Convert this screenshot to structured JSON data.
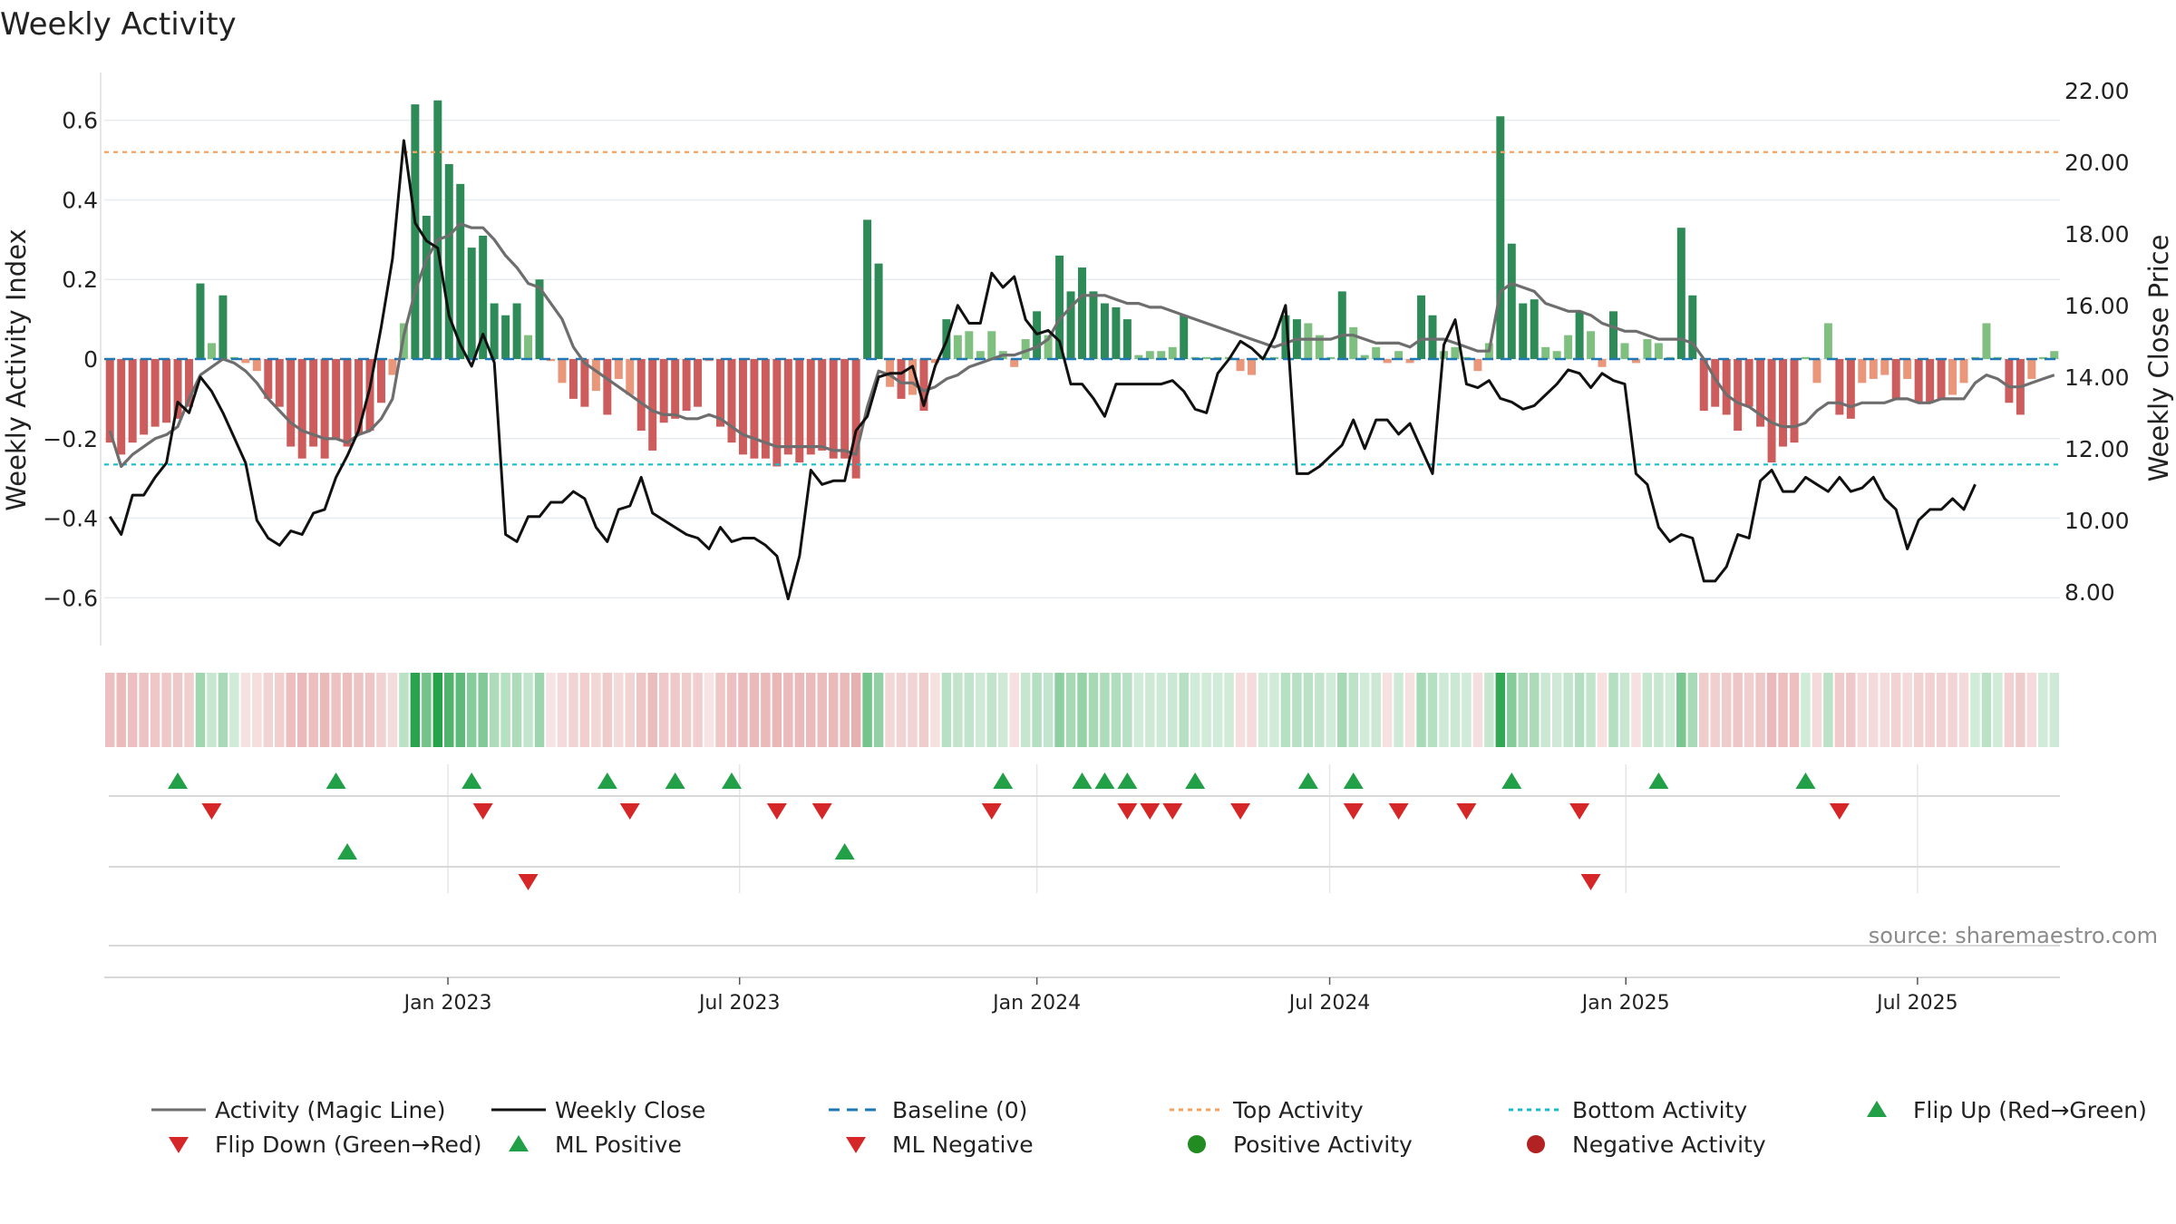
{
  "chart_data": {
    "type": "bar+line",
    "title": "Weekly Activity",
    "ylabel": "Weekly Activity Index",
    "y2label": "Weekly Close Price",
    "source": "source: sharemaestro.com",
    "ylim": [
      -0.72,
      0.72
    ],
    "y2lim": [
      6.5,
      22.5
    ],
    "yticks": [
      0.6,
      0.4,
      0.2,
      0,
      -0.2,
      -0.4,
      -0.6
    ],
    "ytick_labels": [
      "0.6",
      "0.4",
      "0.2",
      "0",
      "−0.2",
      "−0.4",
      "−0.6"
    ],
    "y2ticks": [
      22,
      20,
      18,
      16,
      14,
      12,
      10,
      8
    ],
    "y2tick_labels": [
      "22.00",
      "20.00",
      "18.00",
      "16.00",
      "14.00",
      "12.00",
      "10.00",
      "8.00"
    ],
    "xticks": [
      {
        "label": "Jan 2023",
        "week": 29.9
      },
      {
        "label": "Jul 2023",
        "week": 55.7
      },
      {
        "label": "Jan 2024",
        "week": 82.0
      },
      {
        "label": "Jul 2024",
        "week": 107.9
      },
      {
        "label": "Jan 2025",
        "week": 134.1
      },
      {
        "label": "Jul 2025",
        "week": 159.9
      }
    ],
    "top_activity": 0.52,
    "bottom_activity": -0.265,
    "colors": {
      "pos_strong": "#2e8b57",
      "pos_light": "#7fbf7f",
      "neg_strong": "#cd5c5c",
      "neg_light": "#e9967a",
      "magic_line": "#6e6e6e",
      "close_line": "#111111",
      "baseline": "#1f77b4",
      "top_line": "#f4a261",
      "bottom_line": "#17becf",
      "flip_up": "#22a047",
      "flip_down": "#d62728",
      "positive_dot": "#228b22",
      "negative_dot": "#b22222"
    },
    "series": [
      {
        "name": "Weekly Activity Index",
        "values": [
          -0.21,
          -0.24,
          -0.21,
          -0.19,
          -0.17,
          -0.16,
          -0.15,
          -0.12,
          0.19,
          0.04,
          0.16,
          0.005,
          -0.01,
          -0.03,
          -0.1,
          -0.12,
          -0.22,
          -0.25,
          -0.22,
          -0.25,
          -0.2,
          -0.22,
          -0.19,
          -0.18,
          -0.11,
          -0.04,
          0.09,
          0.64,
          0.36,
          0.65,
          0.49,
          0.44,
          0.28,
          0.31,
          0.14,
          0.11,
          0.14,
          0.06,
          0.2,
          -0.005,
          -0.06,
          -0.1,
          -0.12,
          -0.08,
          -0.14,
          -0.05,
          -0.09,
          -0.18,
          -0.23,
          -0.16,
          -0.15,
          -0.13,
          -0.12,
          -0.005,
          -0.17,
          -0.21,
          -0.24,
          -0.25,
          -0.25,
          -0.27,
          -0.24,
          -0.26,
          -0.24,
          -0.23,
          -0.25,
          -0.25,
          -0.3,
          0.35,
          0.24,
          -0.07,
          -0.1,
          -0.09,
          -0.13,
          -0.01,
          0.1,
          0.06,
          0.07,
          0.02,
          0.07,
          0.02,
          -0.02,
          0.05,
          0.12,
          0.06,
          0.26,
          0.17,
          0.23,
          0.17,
          0.14,
          0.13,
          0.1,
          0.01,
          0.02,
          0.02,
          0.03,
          0.11,
          0.005,
          0.005,
          0.005,
          0.005,
          -0.03,
          -0.04,
          0.005,
          0.005,
          0.11,
          0.1,
          0.09,
          0.06,
          0.005,
          0.17,
          0.08,
          0.01,
          0.03,
          -0.01,
          0.02,
          -0.01,
          0.16,
          0.11,
          0.02,
          0.03,
          0.005,
          -0.03,
          0.04,
          0.61,
          0.29,
          0.14,
          0.15,
          0.03,
          0.02,
          0.06,
          0.12,
          0.07,
          -0.02,
          0.12,
          0.04,
          -0.01,
          0.05,
          0.04,
          0.005,
          0.33,
          0.16,
          -0.13,
          -0.12,
          -0.14,
          -0.18,
          -0.12,
          -0.17,
          -0.26,
          -0.22,
          -0.21,
          0.005,
          -0.06,
          0.09,
          -0.14,
          -0.15,
          -0.06,
          -0.05,
          -0.04,
          -0.1,
          -0.05,
          -0.11,
          -0.11,
          -0.1,
          -0.09,
          -0.06,
          0.005,
          0.09,
          0.005,
          -0.11,
          -0.14,
          -0.05,
          0.005,
          0.02
        ]
      },
      {
        "name": "Activity (Magic Line)",
        "values": [
          -0.18,
          -0.27,
          -0.24,
          -0.22,
          -0.2,
          -0.19,
          -0.17,
          -0.1,
          -0.04,
          -0.02,
          0.0,
          -0.01,
          -0.03,
          -0.06,
          -0.1,
          -0.13,
          -0.16,
          -0.18,
          -0.19,
          -0.2,
          -0.2,
          -0.21,
          -0.19,
          -0.18,
          -0.15,
          -0.1,
          0.06,
          0.17,
          0.25,
          0.3,
          0.31,
          0.34,
          0.33,
          0.33,
          0.3,
          0.26,
          0.23,
          0.19,
          0.18,
          0.14,
          0.1,
          0.03,
          -0.01,
          -0.03,
          -0.05,
          -0.07,
          -0.09,
          -0.11,
          -0.13,
          -0.14,
          -0.14,
          -0.15,
          -0.15,
          -0.14,
          -0.15,
          -0.17,
          -0.19,
          -0.2,
          -0.21,
          -0.22,
          -0.22,
          -0.22,
          -0.22,
          -0.22,
          -0.23,
          -0.23,
          -0.24,
          -0.12,
          -0.03,
          -0.04,
          -0.06,
          -0.06,
          -0.08,
          -0.07,
          -0.05,
          -0.04,
          -0.02,
          -0.01,
          0.0,
          0.01,
          0.01,
          0.02,
          0.03,
          0.05,
          0.1,
          0.13,
          0.16,
          0.16,
          0.16,
          0.15,
          0.14,
          0.14,
          0.13,
          0.13,
          0.12,
          0.11,
          0.1,
          0.09,
          0.08,
          0.07,
          0.06,
          0.05,
          0.04,
          0.03,
          0.04,
          0.05,
          0.05,
          0.05,
          0.05,
          0.06,
          0.06,
          0.05,
          0.04,
          0.04,
          0.04,
          0.03,
          0.05,
          0.05,
          0.05,
          0.04,
          0.03,
          0.02,
          0.02,
          0.17,
          0.19,
          0.18,
          0.17,
          0.14,
          0.13,
          0.12,
          0.12,
          0.11,
          0.09,
          0.08,
          0.07,
          0.07,
          0.06,
          0.05,
          0.05,
          0.05,
          0.04,
          0.0,
          -0.05,
          -0.09,
          -0.11,
          -0.12,
          -0.14,
          -0.16,
          -0.17,
          -0.17,
          -0.16,
          -0.13,
          -0.11,
          -0.11,
          -0.12,
          -0.11,
          -0.11,
          -0.11,
          -0.1,
          -0.1,
          -0.11,
          -0.11,
          -0.1,
          -0.1,
          -0.1,
          -0.06,
          -0.04,
          -0.05,
          -0.07,
          -0.07,
          -0.06,
          -0.05,
          -0.04
        ]
      },
      {
        "name": "Weekly Close",
        "axis": "right",
        "values": [
          10.1,
          9.6,
          10.7,
          10.7,
          11.2,
          11.6,
          13.3,
          13.0,
          14.0,
          13.6,
          13.0,
          12.3,
          11.6,
          10.0,
          9.5,
          9.3,
          9.7,
          9.6,
          10.2,
          10.3,
          11.2,
          11.8,
          12.5,
          13.7,
          15.4,
          17.3,
          20.6,
          18.3,
          17.8,
          17.6,
          15.7,
          14.9,
          14.3,
          15.2,
          14.4,
          9.6,
          9.4,
          10.1,
          10.1,
          10.5,
          10.5,
          10.8,
          10.6,
          9.8,
          9.4,
          10.3,
          10.4,
          11.2,
          10.2,
          10.0,
          9.8,
          9.6,
          9.5,
          9.2,
          9.8,
          9.4,
          9.5,
          9.5,
          9.3,
          9.0,
          7.8,
          9.0,
          11.4,
          11.0,
          11.1,
          11.1,
          12.5,
          12.9,
          14.0,
          14.1,
          14.1,
          14.3,
          13.2,
          14.3,
          15.0,
          16.0,
          15.5,
          15.5,
          16.9,
          16.5,
          16.8,
          15.6,
          15.2,
          15.3,
          15.0,
          13.8,
          13.8,
          13.4,
          12.9,
          13.8,
          13.8,
          13.8,
          13.8,
          13.8,
          13.9,
          13.6,
          13.1,
          13.0,
          14.1,
          14.5,
          15.0,
          14.8,
          14.5,
          15.1,
          16.0,
          11.3,
          11.3,
          11.5,
          11.8,
          12.1,
          12.8,
          12.0,
          12.8,
          12.8,
          12.4,
          12.7,
          12.0,
          11.3,
          14.9,
          15.6,
          13.8,
          13.7,
          13.9,
          13.4,
          13.3,
          13.1,
          13.2,
          13.5,
          13.8,
          14.2,
          14.1,
          13.7,
          14.1,
          13.9,
          13.8,
          11.3,
          11.0,
          9.8,
          9.4,
          9.6,
          9.5,
          8.3,
          8.3,
          8.7,
          9.6,
          9.5,
          11.1,
          11.4,
          10.8,
          10.8,
          11.2,
          11.0,
          10.8,
          11.2,
          10.8,
          10.9,
          11.2,
          10.6,
          10.3,
          9.2,
          10.0,
          10.3,
          10.3,
          10.6,
          10.3,
          11.0
        ]
      }
    ],
    "heat_strip": [
      -0.21,
      -0.24,
      -0.21,
      -0.19,
      -0.17,
      -0.16,
      -0.15,
      -0.12,
      0.19,
      0.04,
      0.16,
      0.005,
      -0.01,
      -0.03,
      -0.1,
      -0.12,
      -0.22,
      -0.25,
      -0.22,
      -0.25,
      -0.2,
      -0.22,
      -0.19,
      -0.18,
      -0.11,
      -0.04,
      0.09,
      0.64,
      0.36,
      0.65,
      0.49,
      0.44,
      0.28,
      0.31,
      0.14,
      0.11,
      0.14,
      0.06,
      0.2,
      -0.005,
      -0.06,
      -0.1,
      -0.12,
      -0.08,
      -0.14,
      -0.05,
      -0.09,
      -0.18,
      -0.23,
      -0.16,
      -0.15,
      -0.13,
      -0.12,
      -0.005,
      -0.17,
      -0.21,
      -0.24,
      -0.25,
      -0.25,
      -0.27,
      -0.24,
      -0.26,
      -0.24,
      -0.23,
      -0.25,
      -0.25,
      -0.3,
      0.35,
      0.24,
      -0.07,
      -0.1,
      -0.09,
      -0.13,
      -0.01,
      0.1,
      0.06,
      0.07,
      0.02,
      0.07,
      0.02,
      -0.02,
      0.05,
      0.12,
      0.06,
      0.26,
      0.17,
      0.23,
      0.17,
      0.14,
      0.13,
      0.1,
      0.01,
      0.02,
      0.02,
      0.03,
      0.11,
      0.005,
      0.005,
      0.005,
      0.005,
      -0.03,
      -0.04,
      0.005,
      0.005,
      0.11,
      0.1,
      0.09,
      0.06,
      0.005,
      0.17,
      0.08,
      0.01,
      0.03,
      -0.01,
      0.02,
      -0.01,
      0.16,
      0.11,
      0.02,
      0.03,
      0.005,
      -0.03,
      0.04,
      0.61,
      0.29,
      0.14,
      0.15,
      0.03,
      0.02,
      0.06,
      0.12,
      0.07,
      -0.02,
      0.12,
      0.04,
      -0.01,
      0.05,
      0.04,
      0.005,
      0.33,
      0.16,
      -0.13,
      -0.12,
      -0.14,
      -0.18,
      -0.12,
      -0.17,
      -0.26,
      -0.22,
      -0.21,
      0.005,
      -0.06,
      0.09,
      -0.14,
      -0.15,
      -0.06,
      -0.05,
      -0.04,
      -0.1,
      -0.05,
      -0.11,
      -0.11,
      -0.1,
      -0.09,
      -0.06,
      0.005,
      0.09,
      0.005,
      -0.11,
      -0.14,
      -0.05,
      0.005,
      0.02
    ],
    "flip_up_weeks": [
      6,
      20,
      32,
      44,
      50,
      55,
      79,
      86,
      88,
      90,
      96,
      106,
      110,
      124,
      137,
      150
    ],
    "flip_down_weeks": [
      9,
      33,
      46,
      59,
      63,
      78,
      90,
      92,
      94,
      100,
      110,
      114,
      120,
      130,
      153
    ],
    "ml_positive_weeks": [
      21,
      65
    ],
    "ml_negative_weeks": [
      37,
      131
    ],
    "legend": [
      "Activity (Magic Line)",
      "Weekly Close",
      "Baseline (0)",
      "Top Activity",
      "Bottom Activity",
      "Flip Up (Red→Green)",
      "Flip Down (Green→Red)",
      "ML Positive",
      "ML Negative",
      "Positive Activity",
      "Negative Activity"
    ]
  }
}
